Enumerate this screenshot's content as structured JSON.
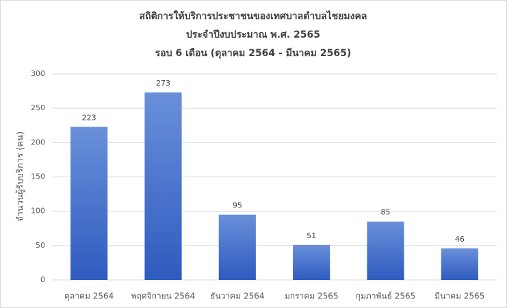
{
  "chart_data": {
    "type": "bar",
    "title": [
      "สถิติการให้บริการประชาชนของเทศบาลตำบลไชยมงคล",
      "ประจำปีงบประมาณ พ.ศ. 2565",
      "รอบ 6 เดือน (ตุลาคม 2564 - มีนาคม 2565)"
    ],
    "y_label": "จำนวนผู้รับบริการ (คน)",
    "categories": [
      "ตุลาคม 2564",
      "พฤศจิกายน 2564",
      "ธันวาคม 2564",
      "มกราคม 2565",
      "กุมภาพันธ์ 2565",
      "มีนาคม 2565"
    ],
    "values": [
      223,
      273,
      95,
      51,
      85,
      46
    ],
    "color": "#4472c4",
    "ylim": [
      0,
      300
    ],
    "yticks": [
      0,
      50,
      100,
      150,
      200,
      250,
      300
    ],
    "grid": true
  }
}
